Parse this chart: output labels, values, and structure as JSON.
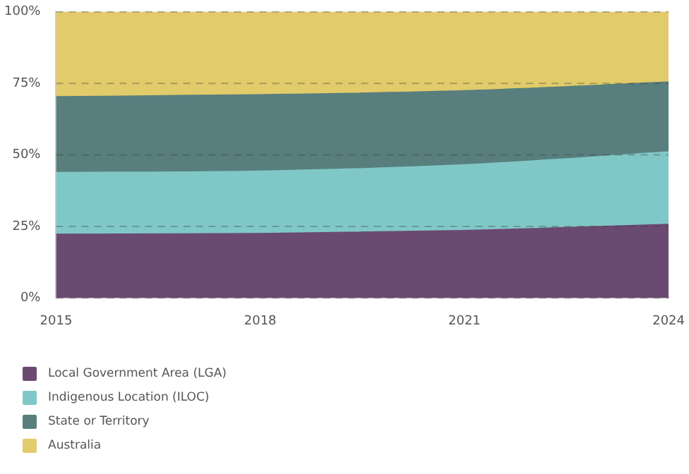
{
  "chart_data": {
    "type": "area",
    "stacked": true,
    "x": [
      2015,
      2018,
      2021,
      2024
    ],
    "xlim": [
      2015,
      2024
    ],
    "xticks": [
      2015,
      2018,
      2021,
      2024
    ],
    "ylim": [
      0,
      100
    ],
    "yticks": [
      {
        "value": 0,
        "label": "0%"
      },
      {
        "value": 25,
        "label": "25%"
      },
      {
        "value": 50,
        "label": "50%"
      },
      {
        "value": 75,
        "label": "75%"
      },
      {
        "value": 100,
        "label": "100%"
      }
    ],
    "grid": "y",
    "legend": "bottom left",
    "marker": "none",
    "series": [
      {
        "name": "Local Government Area (LGA)",
        "color": "#6b4a72",
        "values": [
          22.2,
          22.5,
          23.5,
          25.7
        ]
      },
      {
        "name": "Indigenous Location (ILOC)",
        "color": "#80c8c8",
        "values": [
          21.6,
          21.8,
          23.0,
          25.3
        ]
      },
      {
        "name": "State or Territory",
        "color": "#587f7e",
        "values": [
          26.5,
          26.7,
          25.9,
          24.4
        ]
      },
      {
        "name": "Australia",
        "color": "#e2cb6a",
        "values": [
          29.7,
          29.0,
          27.6,
          24.6
        ]
      }
    ]
  }
}
